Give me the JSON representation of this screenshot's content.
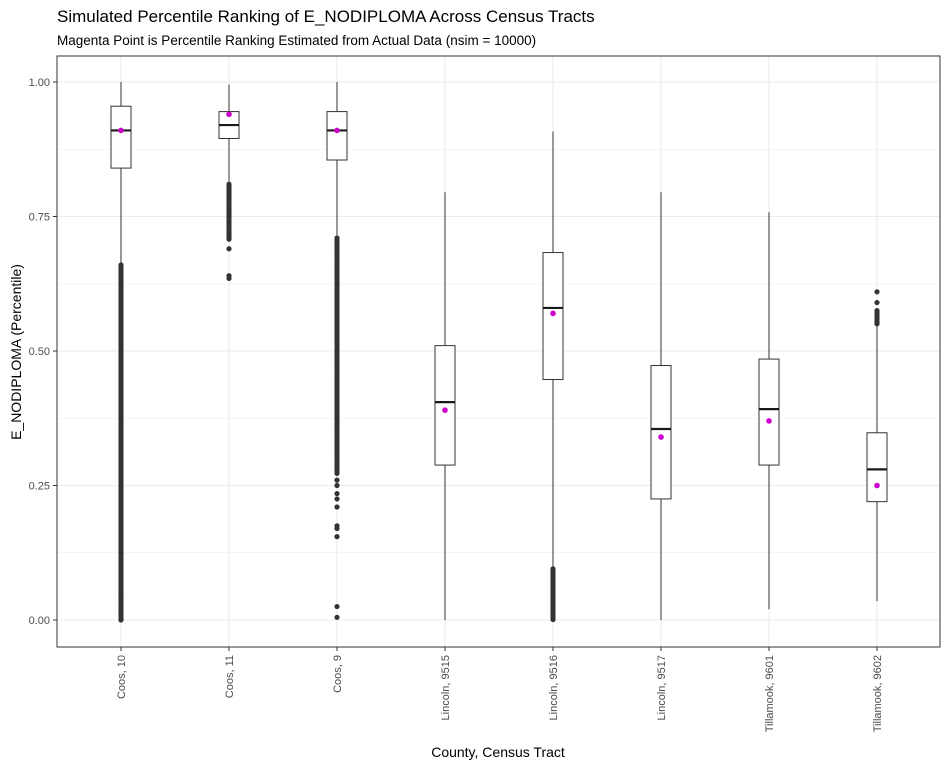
{
  "chart_data": {
    "type": "boxplot",
    "title": "Simulated Percentile Ranking of E_NODIPLOMA Across Census Tracts",
    "subtitle": "Magenta Point is Percentile Ranking Estimated from Actual Data (nsim = 10000)",
    "xlabel": "County, Census Tract",
    "ylabel": "E_NODIPLOMA (Percentile)",
    "ylim": [
      -0.05,
      1.03
    ],
    "yticks": [
      0.0,
      0.25,
      0.5,
      0.75,
      1.0
    ],
    "ytick_labels": [
      "0.00",
      "0.25",
      "0.50",
      "0.75",
      "1.00"
    ],
    "grid": true,
    "colors": {
      "estimate_point": "#cc00cc",
      "outlier": "#333333",
      "box": "#333333",
      "grid": "#ebebeb"
    },
    "categories": [
      "Coos, 10",
      "Coos, 11",
      "Coos, 9",
      "Lincoln, 9515",
      "Lincoln, 9516",
      "Lincoln, 9517",
      "Tillamook, 9601",
      "Tillamook, 9602"
    ],
    "boxes": [
      {
        "whisker_low": 0.66,
        "q1": 0.84,
        "median": 0.91,
        "q3": 0.955,
        "whisker_high": 1.0,
        "outliers": {
          "dense_range": [
            0.0,
            0.66
          ],
          "points": [
            0.0,
            0.01,
            0.03,
            0.05
          ]
        },
        "estimate": 0.91
      },
      {
        "whisker_low": 0.815,
        "q1": 0.895,
        "median": 0.92,
        "q3": 0.945,
        "whisker_high": 0.995,
        "outliers": {
          "dense_range": [
            0.705,
            0.81
          ],
          "points": [
            0.635,
            0.64,
            0.69
          ]
        },
        "estimate": 0.94
      },
      {
        "whisker_low": 0.715,
        "q1": 0.855,
        "median": 0.91,
        "q3": 0.945,
        "whisker_high": 1.0,
        "outliers": {
          "dense_range": [
            0.27,
            0.71
          ],
          "points": [
            0.005,
            0.025,
            0.155,
            0.17,
            0.175,
            0.21,
            0.225,
            0.235,
            0.25,
            0.26
          ]
        },
        "estimate": 0.91
      },
      {
        "whisker_low": 0.0,
        "q1": 0.288,
        "median": 0.405,
        "q3": 0.51,
        "whisker_high": 0.795,
        "outliers": {
          "dense_range": null,
          "points": []
        },
        "estimate": 0.39
      },
      {
        "whisker_low": 0.095,
        "q1": 0.447,
        "median": 0.58,
        "q3": 0.683,
        "whisker_high": 0.908,
        "outliers": {
          "dense_range": [
            0.0,
            0.095
          ],
          "points": []
        },
        "estimate": 0.57
      },
      {
        "whisker_low": 0.0,
        "q1": 0.225,
        "median": 0.355,
        "q3": 0.473,
        "whisker_high": 0.795,
        "outliers": {
          "dense_range": null,
          "points": []
        },
        "estimate": 0.34
      },
      {
        "whisker_low": 0.02,
        "q1": 0.288,
        "median": 0.392,
        "q3": 0.485,
        "whisker_high": 0.758,
        "outliers": {
          "dense_range": null,
          "points": []
        },
        "estimate": 0.37
      },
      {
        "whisker_low": 0.035,
        "q1": 0.22,
        "median": 0.28,
        "q3": 0.348,
        "whisker_high": 0.545,
        "outliers": {
          "dense_range": [
            0.55,
            0.575
          ],
          "points": [
            0.59,
            0.61
          ]
        },
        "estimate": 0.25
      }
    ]
  }
}
